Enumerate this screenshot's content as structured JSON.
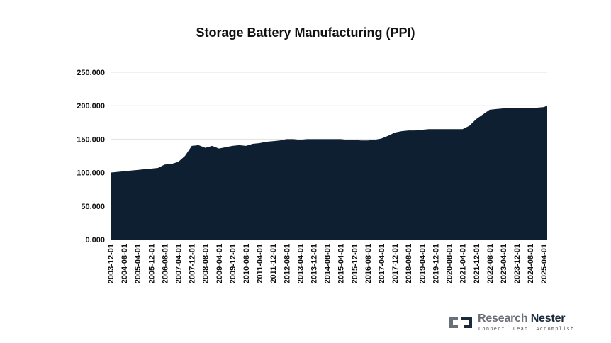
{
  "chart_data": {
    "type": "area",
    "title": "Storage Battery Manufacturing (PPI)",
    "xlabel": "",
    "ylabel": "",
    "ylim": [
      0,
      250
    ],
    "yticks": [
      0,
      50,
      100,
      150,
      200,
      250
    ],
    "ytick_labels": [
      "0.000",
      "50.000",
      "100.000",
      "150.000",
      "200.000",
      "250.000"
    ],
    "grid": true,
    "fill_color": "#0f1f32",
    "x_tick_labels": [
      "2003-12-01",
      "2004-08-01",
      "2005-04-01",
      "2005-12-01",
      "2006-08-01",
      "2007-04-01",
      "2007-12-01",
      "2008-08-01",
      "2009-04-01",
      "2009-12-01",
      "2010-08-01",
      "2011-04-01",
      "2011-12-01",
      "2012-08-01",
      "2013-04-01",
      "2013-12-01",
      "2014-08-01",
      "2015-04-01",
      "2015-12-01",
      "2016-08-01",
      "2017-04-01",
      "2017-12-01",
      "2018-08-01",
      "2019-04-01",
      "2019-12-01",
      "2020-08-01",
      "2021-04-01",
      "2021-12-01",
      "2022-08-01",
      "2023-04-01",
      "2023-12-01",
      "2024-08-01",
      "2025-04-01"
    ],
    "x": [
      "2003-12-01",
      "2004-04-01",
      "2004-08-01",
      "2004-12-01",
      "2005-04-01",
      "2005-08-01",
      "2005-12-01",
      "2006-04-01",
      "2006-08-01",
      "2006-12-01",
      "2007-04-01",
      "2007-08-01",
      "2007-12-01",
      "2008-04-01",
      "2008-08-01",
      "2008-12-01",
      "2009-04-01",
      "2009-08-01",
      "2009-12-01",
      "2010-04-01",
      "2010-08-01",
      "2010-12-01",
      "2011-04-01",
      "2011-08-01",
      "2011-12-01",
      "2012-04-01",
      "2012-08-01",
      "2012-12-01",
      "2013-04-01",
      "2013-08-01",
      "2013-12-01",
      "2014-04-01",
      "2014-08-01",
      "2014-12-01",
      "2015-04-01",
      "2015-08-01",
      "2015-12-01",
      "2016-04-01",
      "2016-08-01",
      "2016-12-01",
      "2017-04-01",
      "2017-08-01",
      "2017-12-01",
      "2018-04-01",
      "2018-08-01",
      "2018-12-01",
      "2019-04-01",
      "2019-08-01",
      "2019-12-01",
      "2020-04-01",
      "2020-08-01",
      "2020-12-01",
      "2021-04-01",
      "2021-08-01",
      "2021-12-01",
      "2022-04-01",
      "2022-08-01",
      "2022-12-01",
      "2023-04-01",
      "2023-08-01",
      "2023-12-01",
      "2024-04-01",
      "2024-08-01",
      "2024-12-01",
      "2025-04-01",
      "2025-06-01"
    ],
    "values": [
      100,
      101,
      102,
      103,
      104,
      105,
      106,
      107,
      112,
      113,
      116,
      125,
      140,
      141,
      137,
      140,
      136,
      138,
      140,
      141,
      140,
      143,
      144,
      146,
      147,
      148,
      150,
      150,
      149,
      150,
      150,
      150,
      150,
      150,
      150,
      149,
      149,
      148,
      148,
      149,
      151,
      155,
      160,
      162,
      163,
      163,
      164,
      165,
      165,
      165,
      165,
      165,
      165,
      170,
      180,
      187,
      194,
      195,
      196,
      196,
      196,
      196,
      196,
      197,
      198,
      200
    ]
  },
  "logo": {
    "name_part1": "Research ",
    "name_part2": "Nester",
    "tagline": "Connect. Lead. Accomplish"
  }
}
